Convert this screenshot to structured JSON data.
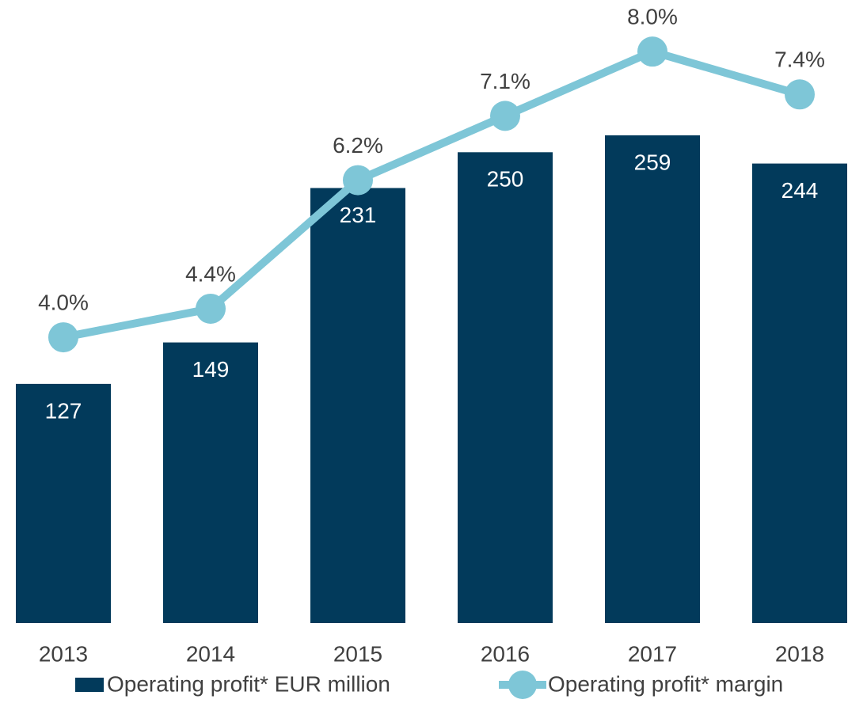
{
  "chart_data": {
    "type": "bar_line",
    "categories": [
      "2013",
      "2014",
      "2015",
      "2016",
      "2017",
      "2018"
    ],
    "series": [
      {
        "name": "Operating profit* EUR million",
        "color": "#023a5b",
        "type": "bar",
        "values": [
          127,
          149,
          231,
          250,
          259,
          244
        ]
      },
      {
        "name": "Operating profit* margin",
        "color": "#7ec6d7",
        "type": "line",
        "axis": "y2",
        "values": [
          4.0,
          4.4,
          6.2,
          7.1,
          8.0,
          7.4
        ],
        "value_labels": [
          "4.0%",
          "4.4%",
          "6.2%",
          "7.1%",
          "8.0%",
          "7.4%"
        ]
      }
    ],
    "ylim": [
      0,
      330
    ],
    "y2lim": [
      0,
      8.7
    ]
  }
}
